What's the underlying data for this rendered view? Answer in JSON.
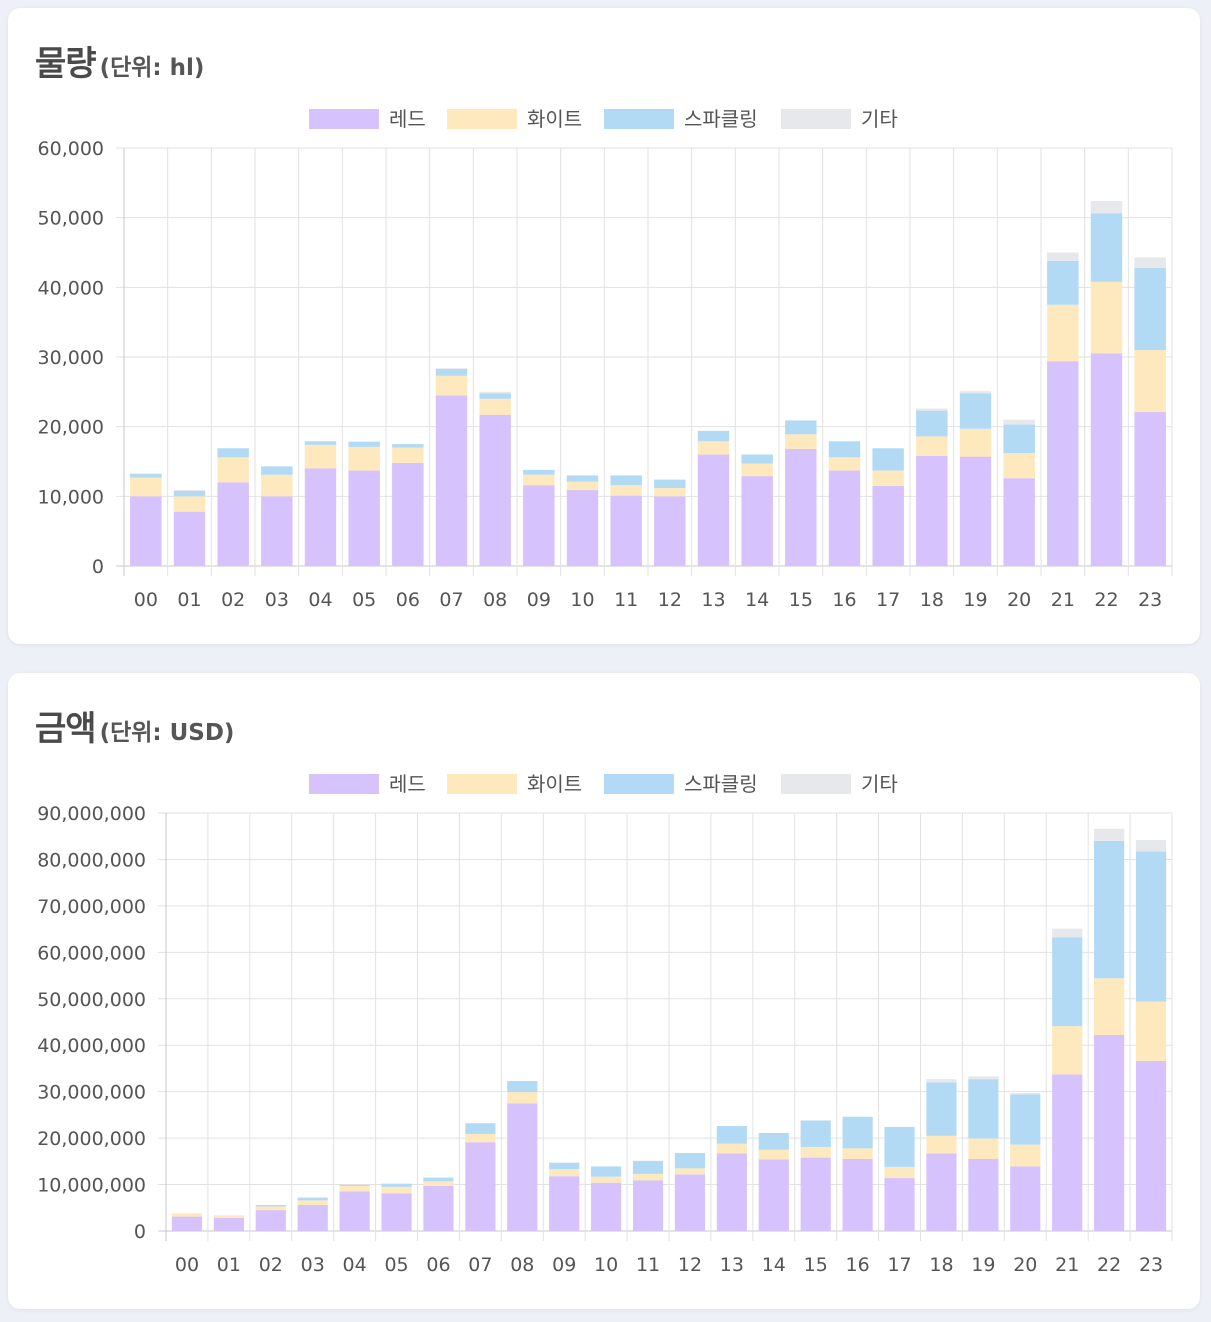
{
  "legend": {
    "red": "레드",
    "white": "화이트",
    "sparkling": "스파클링",
    "other": "기타"
  },
  "colors": {
    "red": "#d6c2fd",
    "white": "#fde9bd",
    "sparkling": "#b2daf4",
    "other": "#e7e8eb",
    "grid": "#e2e2e2",
    "axis": "#c8c8c8",
    "text": "#555555"
  },
  "chart_data": [
    {
      "type": "bar",
      "stacked": true,
      "title": "물량",
      "subtitle": "(단위: hl)",
      "categories": [
        "00",
        "01",
        "02",
        "03",
        "04",
        "05",
        "06",
        "07",
        "08",
        "09",
        "10",
        "11",
        "12",
        "13",
        "14",
        "15",
        "16",
        "17",
        "18",
        "19",
        "20",
        "21",
        "22",
        "23"
      ],
      "yticks": [
        "0",
        "10,000",
        "20,000",
        "30,000",
        "40,000",
        "50,000",
        "60,000"
      ],
      "ylim": [
        0,
        60000
      ],
      "grid": true,
      "legend_position": "top-center",
      "series": [
        {
          "key": "red",
          "name": "레드",
          "values": [
            10000,
            7800,
            12000,
            10000,
            14000,
            13700,
            14800,
            24500,
            21700,
            11600,
            10900,
            10100,
            10000,
            16000,
            12900,
            16800,
            13700,
            11500,
            15800,
            15700,
            12600,
            29400,
            30500,
            22100
          ]
        },
        {
          "key": "white",
          "name": "화이트",
          "values": [
            2700,
            2200,
            3600,
            3100,
            3400,
            3400,
            2200,
            2800,
            2300,
            1500,
            1200,
            1500,
            1200,
            1900,
            1800,
            2100,
            1900,
            2200,
            2800,
            4000,
            3600,
            8100,
            10300,
            8900
          ]
        },
        {
          "key": "sparkling",
          "name": "스파클링",
          "values": [
            500,
            800,
            1300,
            1200,
            500,
            700,
            500,
            1000,
            800,
            700,
            900,
            1400,
            1200,
            1500,
            1300,
            2000,
            2300,
            3200,
            3700,
            5100,
            4100,
            6300,
            9800,
            11800
          ]
        },
        {
          "key": "other",
          "name": "기타",
          "values": [
            100,
            100,
            0,
            0,
            0,
            100,
            0,
            100,
            200,
            0,
            0,
            0,
            0,
            0,
            0,
            0,
            0,
            0,
            300,
            300,
            700,
            1200,
            1800,
            1500
          ]
        }
      ]
    },
    {
      "type": "bar",
      "stacked": true,
      "title": "금액",
      "subtitle": "(단위: USD)",
      "categories": [
        "00",
        "01",
        "02",
        "03",
        "04",
        "05",
        "06",
        "07",
        "08",
        "09",
        "10",
        "11",
        "12",
        "13",
        "14",
        "15",
        "16",
        "17",
        "18",
        "19",
        "20",
        "21",
        "22",
        "23"
      ],
      "yticks": [
        "0",
        "10,000,000",
        "20,000,000",
        "30,000,000",
        "40,000,000",
        "50,000,000",
        "60,000,000",
        "70,000,000",
        "80,000,000",
        "90,000,000"
      ],
      "ylim": [
        0,
        90000000
      ],
      "grid": true,
      "legend_position": "top-center",
      "series": [
        {
          "key": "red",
          "name": "레드",
          "values": [
            3100000,
            2800000,
            4500000,
            5600000,
            8500000,
            8100000,
            9700000,
            19100000,
            27500000,
            11800000,
            10400000,
            10900000,
            12200000,
            16700000,
            15400000,
            15800000,
            15500000,
            11400000,
            16700000,
            15500000,
            13900000,
            33700000,
            42200000,
            36600000
          ]
        },
        {
          "key": "white",
          "name": "화이트",
          "values": [
            700000,
            600000,
            800000,
            1000000,
            1200000,
            1400000,
            1000000,
            1800000,
            2400000,
            1500000,
            1300000,
            1400000,
            1300000,
            2100000,
            2100000,
            2300000,
            2300000,
            2400000,
            3800000,
            4400000,
            4700000,
            10400000,
            12200000,
            12800000
          ]
        },
        {
          "key": "sparkling",
          "name": "스파클링",
          "values": [
            0,
            0,
            300000,
            600000,
            200000,
            700000,
            800000,
            2300000,
            2400000,
            1400000,
            2200000,
            2800000,
            3300000,
            3800000,
            3600000,
            5700000,
            6800000,
            8600000,
            11500000,
            12800000,
            10800000,
            19100000,
            29600000,
            32300000
          ]
        },
        {
          "key": "other",
          "name": "기타",
          "values": [
            200,
            200,
            200,
            200,
            200,
            200,
            200,
            200,
            200,
            200,
            200,
            200,
            200,
            200,
            200,
            200,
            200,
            200,
            700000,
            600000,
            300000,
            1900000,
            2600000,
            2500000
          ]
        }
      ]
    }
  ]
}
